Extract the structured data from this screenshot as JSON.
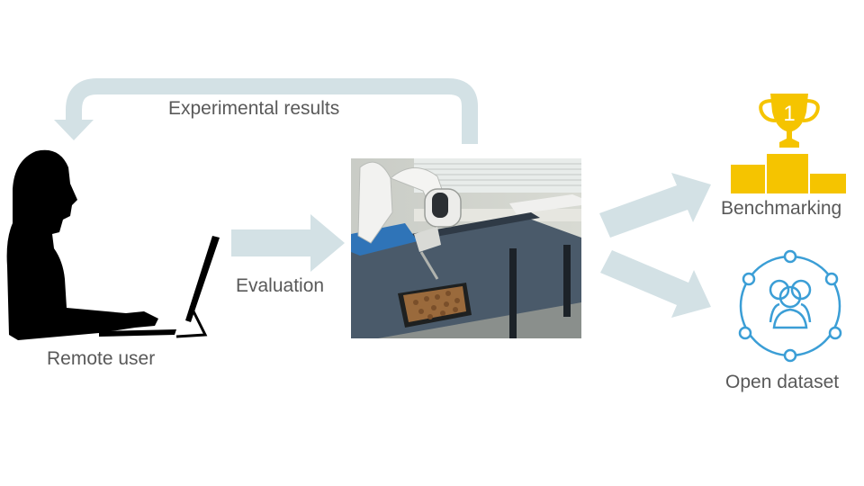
{
  "diagram": {
    "feedback_label": "Experimental results",
    "evaluation_label": "Evaluation",
    "user_label": "Remote user",
    "benchmark_label": "Benchmarking",
    "dataset_label": "Open dataset",
    "trophy_number": "1"
  },
  "colors": {
    "arrow": "#d3e1e5",
    "silhouette": "#000000",
    "trophy": "#f5c400",
    "dataset_icon": "#3b9ed6",
    "text": "#595959"
  },
  "icons": [
    "person-at-computer-icon",
    "trophy-podium-icon",
    "people-network-icon"
  ]
}
